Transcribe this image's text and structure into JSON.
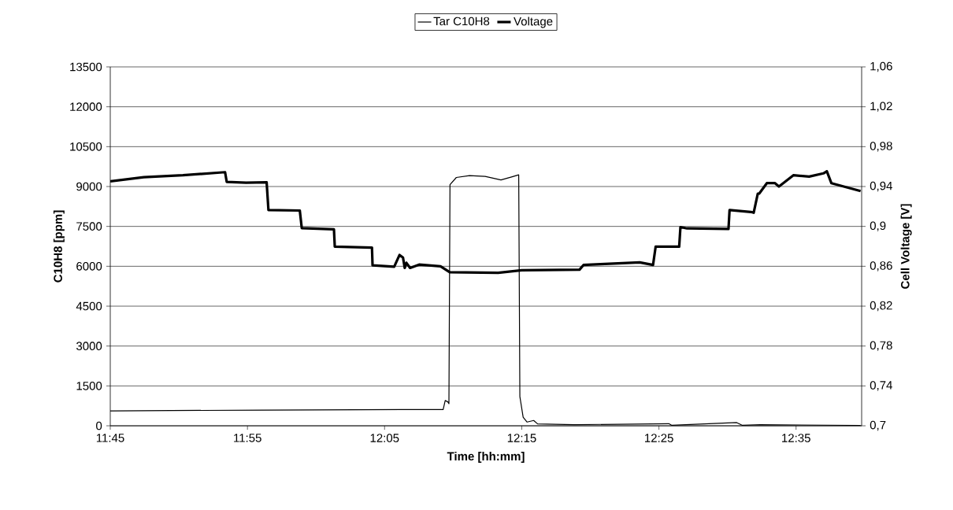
{
  "chart_data": {
    "type": "line",
    "xlabel": "Time [hh:mm]",
    "ylabel": "C10H8 [ppm]",
    "y2label": "Cell Voltage [V]",
    "xlim": [
      11.75,
      12.663
    ],
    "xticks": [
      {
        "value": 11.75,
        "label": "11:45"
      },
      {
        "value": 11.9167,
        "label": "11:55"
      },
      {
        "value": 12.0833,
        "label": "12:05"
      },
      {
        "value": 12.25,
        "label": "12:15"
      },
      {
        "value": 12.4167,
        "label": "12:25"
      },
      {
        "value": 12.5833,
        "label": "12:35"
      }
    ],
    "ylim": [
      0,
      13500
    ],
    "yticks": [
      0,
      1500,
      3000,
      4500,
      6000,
      7500,
      9000,
      10500,
      12000,
      13500
    ],
    "y2lim": [
      0.7,
      1.06
    ],
    "y2ticks": [
      {
        "value": 0.7,
        "label": "0,7"
      },
      {
        "value": 0.74,
        "label": "0,74"
      },
      {
        "value": 0.78,
        "label": "0,78"
      },
      {
        "value": 0.82,
        "label": "0,82"
      },
      {
        "value": 0.86,
        "label": "0,86"
      },
      {
        "value": 0.9,
        "label": "0,9"
      },
      {
        "value": 0.94,
        "label": "0,94"
      },
      {
        "value": 0.98,
        "label": "0,98"
      },
      {
        "value": 1.02,
        "label": "1,02"
      },
      {
        "value": 1.06,
        "label": "1,06"
      }
    ],
    "grid": "y",
    "legend": "top",
    "marker": "none",
    "line_style": "solid",
    "series": [
      {
        "name": "Tar C10H8",
        "color": "#000000",
        "x": [
          11.75,
          11.9333,
          12.125,
          12.1227,
          12.1545,
          12.157,
          12.1602,
          12.1615,
          12.1628,
          12.1705,
          12.1865,
          12.2055,
          12.2247,
          12.2375,
          12.2463,
          12.2477,
          12.2517,
          12.2565,
          12.2645,
          12.2693,
          12.314,
          12.4287,
          12.432,
          12.5112,
          12.5177,
          12.5397,
          12.6617
        ],
        "values": [
          560,
          590,
          610,
          610,
          610,
          950,
          900,
          830,
          9070,
          9340,
          9410,
          9380,
          9250,
          9360,
          9440,
          1100,
          320,
          140,
          200,
          70,
          40,
          80,
          20,
          120,
          20,
          40,
          15
        ]
      },
      {
        "name": "Voltage",
        "color": "#000000",
        "axis": "y2",
        "x": [
          11.75,
          11.7908,
          11.8383,
          11.8895,
          11.8915,
          11.915,
          11.94,
          11.9422,
          11.9803,
          11.9827,
          12.0218,
          12.0228,
          12.068,
          12.0687,
          12.095,
          12.1015,
          12.1057,
          12.1078,
          12.1098,
          12.1143,
          12.1253,
          12.1513,
          12.1625,
          12.2213,
          12.25,
          12.3202,
          12.325,
          12.3457,
          12.3933,
          12.4095,
          12.4127,
          12.4413,
          12.4428,
          12.4508,
          12.5012,
          12.5025,
          12.5285,
          12.5318,
          12.5368,
          12.5385,
          12.5478,
          12.5577,
          12.5625,
          12.58,
          12.5992,
          12.6165,
          12.6207,
          12.6262,
          12.6617
        ],
        "values": [
          0.9452,
          0.9494,
          0.9513,
          0.9544,
          0.9447,
          0.9439,
          0.9442,
          0.9164,
          0.9159,
          0.8983,
          0.897,
          0.8797,
          0.8787,
          0.8609,
          0.8596,
          0.8714,
          0.8687,
          0.8583,
          0.8635,
          0.8583,
          0.8617,
          0.86,
          0.854,
          0.8534,
          0.856,
          0.8566,
          0.8613,
          0.8621,
          0.8639,
          0.8613,
          0.8797,
          0.8797,
          0.8993,
          0.898,
          0.8975,
          0.9164,
          0.9145,
          0.9137,
          0.9329,
          0.9329,
          0.9434,
          0.9434,
          0.94,
          0.9513,
          0.95,
          0.9532,
          0.9553,
          0.9434,
          0.9355
        ]
      }
    ]
  }
}
